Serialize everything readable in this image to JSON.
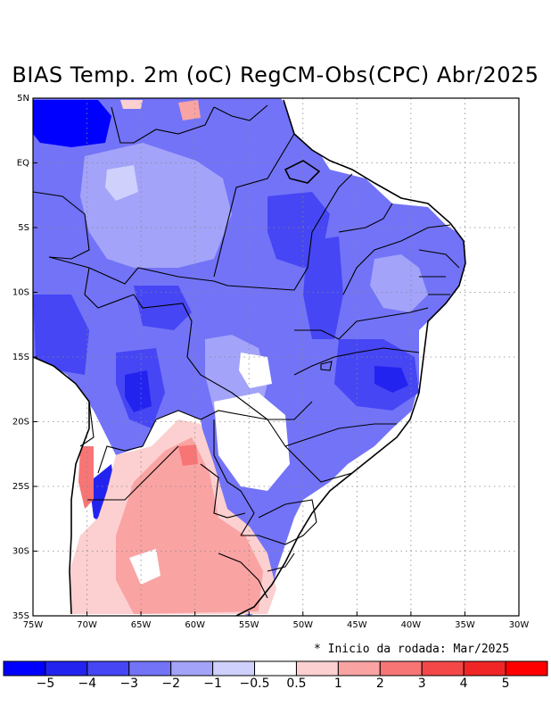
{
  "title": "BIAS Temp. 2m (oC) RegCM-Obs(CPC) Abr/2025",
  "note": "* Inicio da rodada: Mar/2025",
  "axes": {
    "lat_ticks": [
      {
        "value": 5,
        "label": "5N"
      },
      {
        "value": 0,
        "label": "EQ"
      },
      {
        "value": -5,
        "label": "5S"
      },
      {
        "value": -10,
        "label": "10S"
      },
      {
        "value": -15,
        "label": "15S"
      },
      {
        "value": -20,
        "label": "20S"
      },
      {
        "value": -25,
        "label": "25S"
      },
      {
        "value": -30,
        "label": "30S"
      },
      {
        "value": -35,
        "label": "35S"
      }
    ],
    "lon_ticks": [
      {
        "value": -75,
        "label": "75W"
      },
      {
        "value": -70,
        "label": "70W"
      },
      {
        "value": -65,
        "label": "65W"
      },
      {
        "value": -60,
        "label": "60W"
      },
      {
        "value": -55,
        "label": "55W"
      },
      {
        "value": -50,
        "label": "50W"
      },
      {
        "value": -45,
        "label": "45W"
      },
      {
        "value": -40,
        "label": "40W"
      },
      {
        "value": -35,
        "label": "35W"
      },
      {
        "value": -30,
        "label": "30W"
      }
    ],
    "lon_range": [
      -75,
      -30
    ],
    "lat_range": [
      -35,
      5
    ],
    "grid": true
  },
  "colorbar": {
    "colors": [
      "#0000ff",
      "#2323f0",
      "#4646f5",
      "#7373f8",
      "#a3a3fa",
      "#cfd0fc",
      "#ffffff",
      "#fcd0d0",
      "#faa3a3",
      "#f87575",
      "#f44848",
      "#f02626",
      "#ff0000"
    ],
    "labels": [
      "−5",
      "−4",
      "−3",
      "−2",
      "−1",
      "−0.5",
      "0.5",
      "1",
      "2",
      "3",
      "4",
      "5"
    ]
  },
  "icons": {
    "map": "bias-map"
  }
}
